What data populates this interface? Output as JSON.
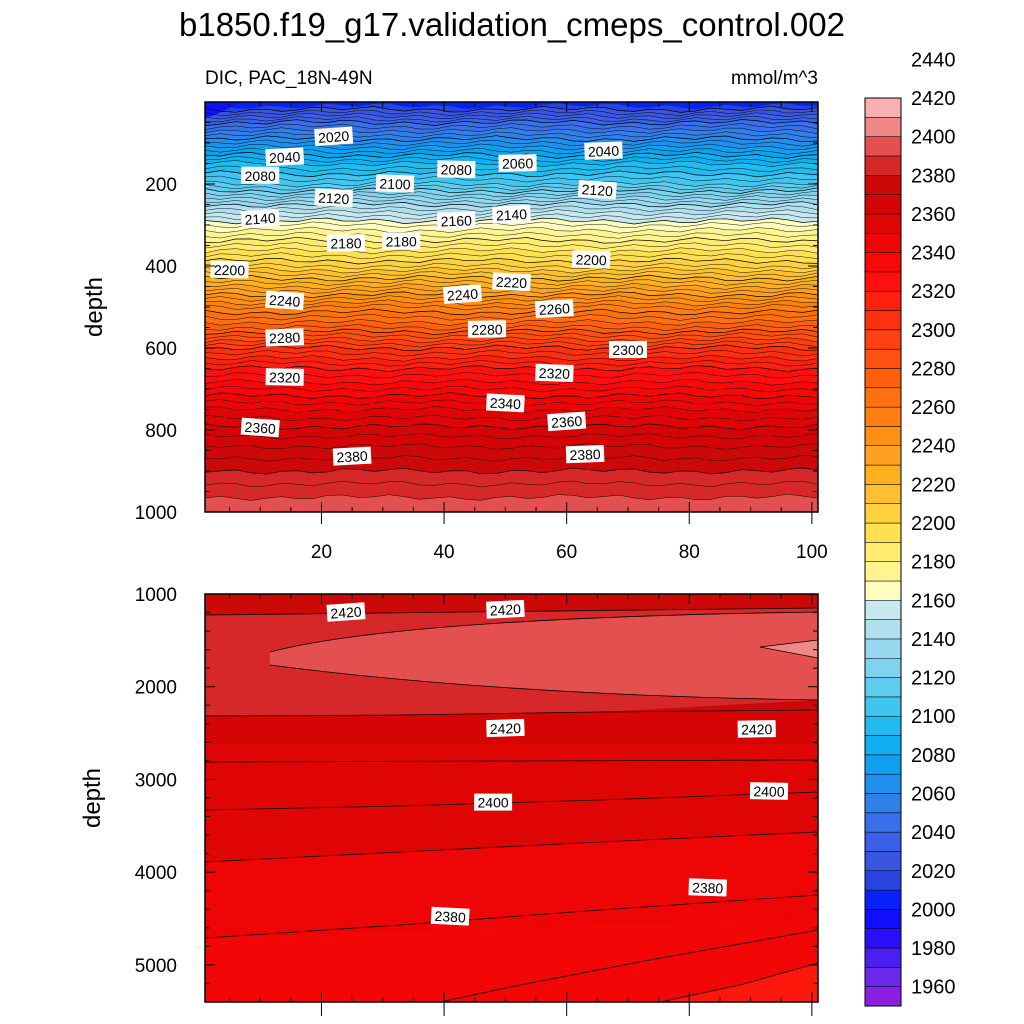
{
  "chart_data": {
    "title": "b1850.f19_g17.validation_cmeps_control.002",
    "left_subtitle": "DIC, PAC_18N-49N",
    "right_subtitle": "mmol/m^3",
    "type": "heatmap",
    "units": "mmol/m^3",
    "x_ticks": [
      "20",
      "40",
      "60",
      "80",
      "100"
    ],
    "x_range": [
      1,
      101
    ],
    "panels": [
      {
        "name": "upper-panel",
        "ylabel": "depth",
        "y_range": [
          0,
          1000
        ],
        "y_ticks": [
          "200",
          "400",
          "600",
          "800",
          "1000"
        ],
        "profile": [
          [
            10,
            2015
          ],
          [
            50,
            2040
          ],
          [
            100,
            2065
          ],
          [
            150,
            2090
          ],
          [
            200,
            2110
          ],
          [
            250,
            2140
          ],
          [
            300,
            2165
          ],
          [
            350,
            2185
          ],
          [
            400,
            2205
          ],
          [
            450,
            2230
          ],
          [
            500,
            2255
          ],
          [
            550,
            2275
          ],
          [
            600,
            2300
          ],
          [
            650,
            2320
          ],
          [
            700,
            2335
          ],
          [
            750,
            2350
          ],
          [
            800,
            2362
          ],
          [
            850,
            2372
          ],
          [
            900,
            2380
          ],
          [
            950,
            2388
          ],
          [
            1000,
            2395
          ]
        ],
        "contour_labels": [
          {
            "text": "2020",
            "x": 22,
            "y": 85
          },
          {
            "text": "2040",
            "x": 14,
            "y": 135
          },
          {
            "text": "2040",
            "x": 66,
            "y": 120
          },
          {
            "text": "2060",
            "x": 52,
            "y": 150
          },
          {
            "text": "2080",
            "x": 10,
            "y": 180
          },
          {
            "text": "2080",
            "x": 42,
            "y": 165
          },
          {
            "text": "2100",
            "x": 32,
            "y": 200
          },
          {
            "text": "2120",
            "x": 22,
            "y": 235
          },
          {
            "text": "2120",
            "x": 65,
            "y": 215
          },
          {
            "text": "2140",
            "x": 10,
            "y": 285
          },
          {
            "text": "2140",
            "x": 51,
            "y": 275
          },
          {
            "text": "2160",
            "x": 42,
            "y": 290
          },
          {
            "text": "2180",
            "x": 24,
            "y": 345
          },
          {
            "text": "2180",
            "x": 33,
            "y": 340
          },
          {
            "text": "2200",
            "x": 5,
            "y": 410
          },
          {
            "text": "2200",
            "x": 64,
            "y": 385
          },
          {
            "text": "2220",
            "x": 51,
            "y": 440
          },
          {
            "text": "2240",
            "x": 14,
            "y": 485
          },
          {
            "text": "2240",
            "x": 43,
            "y": 470
          },
          {
            "text": "2260",
            "x": 58,
            "y": 505
          },
          {
            "text": "2280",
            "x": 14,
            "y": 575
          },
          {
            "text": "2280",
            "x": 47,
            "y": 555
          },
          {
            "text": "2300",
            "x": 70,
            "y": 605
          },
          {
            "text": "2320",
            "x": 14,
            "y": 672
          },
          {
            "text": "2320",
            "x": 58,
            "y": 662
          },
          {
            "text": "2340",
            "x": 50,
            "y": 735
          },
          {
            "text": "2360",
            "x": 10,
            "y": 795
          },
          {
            "text": "2360",
            "x": 60,
            "y": 780
          },
          {
            "text": "2380",
            "x": 25,
            "y": 865
          },
          {
            "text": "2380",
            "x": 63,
            "y": 860
          }
        ]
      },
      {
        "name": "lower-panel",
        "ylabel": "depth",
        "y_range": [
          1000,
          5400
        ],
        "y_ticks": [
          "1000",
          "2000",
          "3000",
          "4000",
          "5000"
        ],
        "contour_labels": [
          {
            "text": "2420",
            "x": 24,
            "y": 1200
          },
          {
            "text": "2420",
            "x": 50,
            "y": 1170
          },
          {
            "text": "2420",
            "x": 50,
            "y": 2450
          },
          {
            "text": "2420",
            "x": 91,
            "y": 2460
          },
          {
            "text": "2400",
            "x": 48,
            "y": 3250
          },
          {
            "text": "2400",
            "x": 93,
            "y": 3130
          },
          {
            "text": "2380",
            "x": 83,
            "y": 4170
          },
          {
            "text": "2380",
            "x": 41,
            "y": 4480
          }
        ]
      }
    ],
    "colorbar": {
      "labels": [
        "1960",
        "1980",
        "2000",
        "2020",
        "2040",
        "2060",
        "2080",
        "2100",
        "2120",
        "2140",
        "2160",
        "2180",
        "2200",
        "2220",
        "2240",
        "2260",
        "2280",
        "2300",
        "2320",
        "2340",
        "2360",
        "2380",
        "2400",
        "2420",
        "2440"
      ],
      "min": 1950,
      "max": 2460,
      "step": 10,
      "colors": [
        "#8c20e0",
        "#6a28e8",
        "#4a20f0",
        "#2a10f8",
        "#1010ff",
        "#0a20f8",
        "#2a44e0",
        "#3a56e0",
        "#3a60e8",
        "#3870ea",
        "#3080ec",
        "#2090ee",
        "#10a0f0",
        "#10b0f0",
        "#20bcef",
        "#40c4f0",
        "#60ccee",
        "#80d2ee",
        "#98d8ee",
        "#b0e0f0",
        "#c8e8f0",
        "#fffcc0",
        "#fff590",
        "#ffec70",
        "#ffe050",
        "#ffd040",
        "#ffc030",
        "#ffb020",
        "#ffa020",
        "#ff9010",
        "#ff8010",
        "#ff7010",
        "#ff6010",
        "#ff5010",
        "#ff4010",
        "#ff3010",
        "#ff2010",
        "#ff1010",
        "#f80808",
        "#ee0505",
        "#e00505",
        "#d60505",
        "#cc0808",
        "#d62828",
        "#e45050",
        "#f08888",
        "#f8b0b0"
      ]
    }
  }
}
